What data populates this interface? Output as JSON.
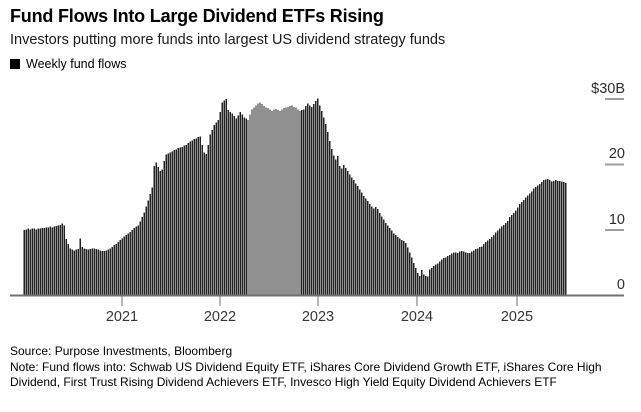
{
  "header": {
    "title": "Fund Flows Into Large Dividend ETFs Rising",
    "subtitle": "Investors putting more funds into largest US dividend strategy funds"
  },
  "legend": {
    "label": "Weekly fund flows",
    "marker_color": "#000000"
  },
  "footer": {
    "source": "Source: Purpose Investments, Bloomberg",
    "note": "Note: Fund flows into: Schwab US Dividend Equity ETF, iShares Core Dividend Growth ETF, iShares Core High Dividend, First Trust Rising Dividend Achievers ETF, Invesco High Yield Equity Dividend Achievers ETF"
  },
  "chart_data": {
    "type": "bar",
    "title": "Fund Flows Into Large Dividend ETFs Rising",
    "series_name": "Weekly fund flows",
    "unit": "USD billions",
    "frequency": "weekly",
    "x_start": "2020-01",
    "x_end": "2025-06",
    "ylim": [
      0,
      30
    ],
    "y_tick_values": [
      30,
      20,
      10,
      0
    ],
    "y_tick_labels": [
      "$30B",
      "20",
      "10",
      "0"
    ],
    "x_tick_labels": [
      "2021",
      "2022",
      "2023",
      "2024",
      "2025"
    ],
    "legend_position": "top-left",
    "grid": false,
    "bar_color": "#222222",
    "values": [
      10.0,
      10.1,
      10.2,
      10.1,
      10.2,
      10.2,
      10.1,
      10.2,
      10.2,
      10.3,
      10.3,
      10.4,
      10.4,
      10.5,
      10.4,
      10.5,
      10.6,
      10.7,
      10.8,
      11.0,
      10.7,
      8.6,
      7.9,
      7.2,
      7.0,
      6.9,
      7.0,
      7.1,
      8.7,
      7.4,
      7.2,
      7.1,
      7.0,
      7.1,
      7.2,
      7.2,
      7.1,
      7.0,
      6.9,
      6.8,
      6.8,
      6.9,
      7.0,
      7.2,
      7.4,
      7.7,
      7.9,
      8.2,
      8.5,
      8.7,
      9.0,
      9.2,
      9.5,
      9.7,
      10.0,
      10.3,
      10.5,
      10.7,
      11.3,
      12.0,
      12.7,
      13.6,
      14.5,
      15.5,
      16.5,
      19.8,
      20.3,
      19.6,
      19.0,
      19.2,
      20.5,
      21.5,
      21.7,
      21.8,
      22.0,
      22.2,
      22.3,
      22.5,
      22.6,
      22.7,
      22.9,
      23.0,
      23.3,
      23.5,
      23.7,
      23.9,
      24.0,
      24.2,
      24.3,
      23.0,
      21.8,
      21.6,
      23.0,
      24.6,
      25.3,
      26.0,
      26.4,
      26.8,
      28.0,
      29.5,
      29.8,
      30.0,
      28.3,
      28.0,
      27.8,
      27.4,
      27.0,
      27.5,
      28.0,
      27.6,
      27.2,
      27.0,
      26.8,
      27.6,
      28.4,
      28.7,
      29.0,
      29.3,
      29.5,
      29.2,
      28.9,
      28.7,
      28.6,
      28.4,
      28.2,
      28.4,
      28.5,
      28.3,
      28.2,
      28.4,
      28.6,
      28.7,
      28.8,
      28.9,
      29.0,
      28.8,
      28.7,
      28.4,
      28.2,
      28.3,
      28.4,
      28.9,
      29.3,
      29.0,
      28.8,
      29.2,
      29.7,
      30.1,
      29.0,
      28.2,
      27.2,
      26.2,
      25.0,
      23.6,
      22.4,
      21.4,
      20.8,
      21.3,
      19.8,
      19.4,
      19.9,
      19.5,
      19.0,
      18.5,
      18.0,
      17.6,
      17.1,
      16.7,
      16.2,
      15.7,
      15.2,
      14.8,
      14.4,
      14.0,
      13.6,
      13.3,
      13.5,
      13.2,
      12.6,
      12.1,
      11.6,
      11.1,
      10.7,
      10.3,
      9.9,
      9.5,
      9.2,
      8.9,
      8.7,
      8.5,
      8.3,
      8.0,
      7.3,
      6.6,
      5.8,
      5.0,
      4.2,
      3.4,
      3.0,
      3.9,
      3.2,
      3.0,
      2.9,
      4.0,
      4.2,
      4.5,
      4.7,
      4.9,
      5.2,
      5.5,
      5.7,
      5.8,
      6.0,
      6.2,
      6.4,
      6.6,
      6.6,
      6.5,
      6.7,
      6.8,
      6.7,
      6.6,
      6.5,
      6.5,
      6.7,
      6.9,
      7.1,
      7.2,
      7.4,
      7.5,
      7.9,
      8.2,
      8.4,
      8.6,
      8.9,
      9.2,
      9.6,
      9.9,
      10.2,
      10.5,
      10.8,
      11.1,
      11.4,
      12.0,
      12.3,
      12.6,
      13.0,
      13.4,
      14.0,
      14.3,
      14.6,
      15.0,
      15.3,
      15.6,
      15.9,
      16.3,
      16.6,
      16.8,
      17.0,
      17.3,
      17.6,
      17.7,
      17.8,
      17.6,
      17.4,
      17.5,
      17.6,
      17.5,
      17.5,
      17.4,
      17.3,
      17.2
    ]
  }
}
